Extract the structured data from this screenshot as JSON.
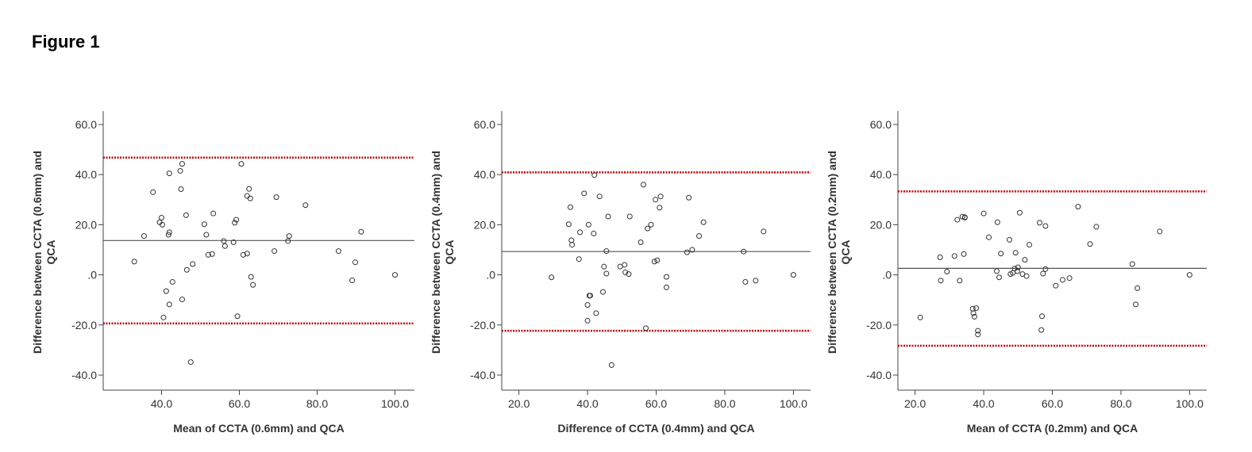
{
  "figure_title": "Figure 1",
  "colors": {
    "axis": "#444444",
    "mean_line": "#555555",
    "limit_line": "#c00000",
    "point": "#333333"
  },
  "chart_data": [
    {
      "type": "scatter",
      "title": "",
      "xlabel": "Mean of CCTA (0.6mm) and QCA",
      "ylabel_lines": [
        "Difference between CCTA (0.6mm) and",
        "QCA"
      ],
      "xticks": [
        "40.0",
        "60.0",
        "80.0",
        "100.0"
      ],
      "yticks": [
        "60.0",
        "40.0",
        "20.0",
        ".0",
        "-20.0",
        "-40.0"
      ],
      "xlim": [
        25,
        105
      ],
      "ylim": [
        -45,
        65
      ],
      "mean_diff": 13.7,
      "upper_loa": 46.8,
      "lower_loa": -19.4,
      "points": [
        [
          33,
          5.3
        ],
        [
          35.5,
          15.5
        ],
        [
          37.8,
          33
        ],
        [
          39.5,
          21
        ],
        [
          40,
          22.8
        ],
        [
          40.2,
          20
        ],
        [
          40.5,
          -17
        ],
        [
          41.2,
          -6.5
        ],
        [
          41.8,
          16
        ],
        [
          42,
          17
        ],
        [
          42,
          40.5
        ],
        [
          42,
          -11.8
        ],
        [
          42.8,
          -2.8
        ],
        [
          44.8,
          41.5
        ],
        [
          45,
          34.2
        ],
        [
          45.3,
          44.3
        ],
        [
          45.3,
          -9.8
        ],
        [
          46.3,
          23.8
        ],
        [
          46.5,
          2
        ],
        [
          47.5,
          -34.8
        ],
        [
          48,
          4.3
        ],
        [
          51,
          20.2
        ],
        [
          51.5,
          16
        ],
        [
          52,
          8
        ],
        [
          53,
          8.3
        ],
        [
          53.3,
          24.5
        ],
        [
          56,
          13.5
        ],
        [
          56.3,
          11.5
        ],
        [
          58.5,
          13
        ],
        [
          58.8,
          20.8
        ],
        [
          59.2,
          22
        ],
        [
          59.5,
          -16.5
        ],
        [
          60.5,
          44.3
        ],
        [
          61,
          8
        ],
        [
          62,
          31.5
        ],
        [
          62,
          8.5
        ],
        [
          62.5,
          34.3
        ],
        [
          62.8,
          30.5
        ],
        [
          63,
          -0.8
        ],
        [
          63.5,
          -4
        ],
        [
          69,
          9.5
        ],
        [
          69.5,
          31
        ],
        [
          72.5,
          13.5
        ],
        [
          72.8,
          15.5
        ],
        [
          77,
          27.8
        ],
        [
          85.5,
          9.5
        ],
        [
          89,
          -2.2
        ],
        [
          89.8,
          5
        ],
        [
          91.3,
          17.2
        ],
        [
          100,
          0
        ]
      ]
    },
    {
      "type": "scatter",
      "title": "",
      "xlabel": "Difference of CCTA (0.4mm) and QCA",
      "ylabel_lines": [
        "Difference between CCTA (0.4mm) and",
        "QCA"
      ],
      "xticks": [
        "20.0",
        "40.0",
        "60.0",
        "80.0",
        "100.0"
      ],
      "yticks": [
        "60.0",
        "40.0",
        "20.0",
        ".0",
        "-20.0",
        "-40.0"
      ],
      "xlim": [
        15,
        105
      ],
      "ylim": [
        -45,
        65
      ],
      "mean_diff": 9.3,
      "upper_loa": 40.9,
      "lower_loa": -22.3,
      "points": [
        [
          29.5,
          -1
        ],
        [
          34.5,
          20.2
        ],
        [
          35,
          27
        ],
        [
          35.3,
          13.8
        ],
        [
          35.5,
          12
        ],
        [
          37.5,
          6.3
        ],
        [
          37.8,
          17
        ],
        [
          39,
          32.5
        ],
        [
          40,
          -12
        ],
        [
          40,
          -18.3
        ],
        [
          40.3,
          20
        ],
        [
          40.5,
          -8.3
        ],
        [
          40.8,
          -8.3
        ],
        [
          41.8,
          16.5
        ],
        [
          42,
          39.8
        ],
        [
          42.5,
          -15.3
        ],
        [
          43.5,
          31.3
        ],
        [
          44.5,
          -6.8
        ],
        [
          44.8,
          3.3
        ],
        [
          45.5,
          9.5
        ],
        [
          45.5,
          0.5
        ],
        [
          46,
          23.3
        ],
        [
          47,
          -36
        ],
        [
          49.5,
          3.3
        ],
        [
          50.8,
          4
        ],
        [
          51,
          1
        ],
        [
          52,
          0.3
        ],
        [
          52.3,
          23.3
        ],
        [
          55.5,
          13
        ],
        [
          56.3,
          36
        ],
        [
          57,
          -21.3
        ],
        [
          57.5,
          18.5
        ],
        [
          58.5,
          20
        ],
        [
          59.5,
          5.3
        ],
        [
          59.8,
          30
        ],
        [
          60.3,
          5.8
        ],
        [
          61,
          26.8
        ],
        [
          61.3,
          31.3
        ],
        [
          63,
          -0.8
        ],
        [
          63,
          -5
        ],
        [
          69,
          9
        ],
        [
          69.5,
          30.8
        ],
        [
          70.5,
          10
        ],
        [
          72.5,
          15.5
        ],
        [
          73.8,
          21
        ],
        [
          85.5,
          9.3
        ],
        [
          86,
          -2.8
        ],
        [
          89,
          -2.3
        ],
        [
          91.3,
          17.3
        ],
        [
          100,
          0
        ]
      ]
    },
    {
      "type": "scatter",
      "title": "",
      "xlabel": "Mean of CCTA (0.2mm) and QCA",
      "ylabel_lines": [
        "Difference between CCTA (0.2mm) and",
        "QCA"
      ],
      "xticks": [
        "20.0",
        "40.0",
        "60.0",
        "80.0",
        "100.0"
      ],
      "yticks": [
        "60.0",
        "40.0",
        "20.0",
        ".0",
        "-20.0",
        "-40.0"
      ],
      "xlim": [
        15,
        105
      ],
      "ylim": [
        -45,
        65
      ],
      "mean_diff": 2.6,
      "upper_loa": 33.3,
      "lower_loa": -28.3,
      "points": [
        [
          21.5,
          -17
        ],
        [
          27.3,
          7
        ],
        [
          27.5,
          -2.3
        ],
        [
          29.3,
          1.3
        ],
        [
          31.5,
          7.5
        ],
        [
          32.3,
          22
        ],
        [
          33,
          -2.3
        ],
        [
          33.8,
          23.2
        ],
        [
          34.2,
          8.3
        ],
        [
          34.5,
          23
        ],
        [
          34.5,
          22.8
        ],
        [
          36.8,
          -13.5
        ],
        [
          37,
          -15.3
        ],
        [
          37.3,
          -16.7
        ],
        [
          37.8,
          -13.3
        ],
        [
          38.3,
          -23.8
        ],
        [
          38.3,
          -22.3
        ],
        [
          40,
          24.5
        ],
        [
          41.5,
          15
        ],
        [
          43.8,
          1.5
        ],
        [
          44,
          21
        ],
        [
          44.5,
          -1
        ],
        [
          45,
          8.5
        ],
        [
          47.5,
          14
        ],
        [
          47.8,
          0.3
        ],
        [
          48.5,
          0.8
        ],
        [
          49,
          2.5
        ],
        [
          49.3,
          8.8
        ],
        [
          49.8,
          1.5
        ],
        [
          50,
          3
        ],
        [
          50.5,
          24.8
        ],
        [
          51.3,
          0.3
        ],
        [
          52,
          6
        ],
        [
          52.5,
          -0.5
        ],
        [
          53.3,
          12
        ],
        [
          56.3,
          20.8
        ],
        [
          56.8,
          -22
        ],
        [
          57,
          -16.5
        ],
        [
          57.3,
          0.5
        ],
        [
          58,
          2.3
        ],
        [
          58,
          19.5
        ],
        [
          61,
          -4.3
        ],
        [
          63,
          -2
        ],
        [
          65,
          -1.3
        ],
        [
          67.5,
          27.2
        ],
        [
          71,
          12.3
        ],
        [
          72.8,
          19.2
        ],
        [
          83.3,
          4.3
        ],
        [
          84.3,
          -11.8
        ],
        [
          84.8,
          -5.3
        ],
        [
          91.3,
          17.3
        ],
        [
          100,
          0
        ]
      ]
    }
  ]
}
